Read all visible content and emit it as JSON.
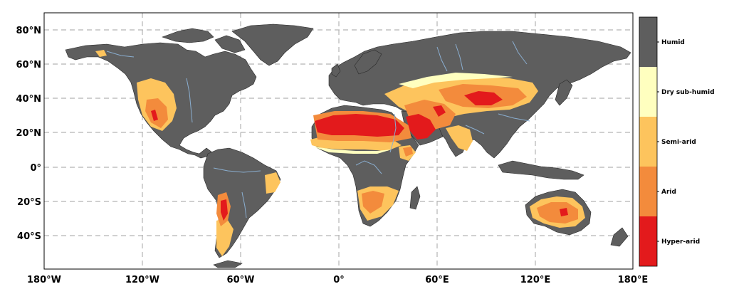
{
  "colors": {
    "humid": "#5e5e5e",
    "dry_subhumid": "#ffffbf",
    "semi_arid": "#fdc45d",
    "arid": "#f38b3c",
    "hyper_arid": "#e31a1c",
    "rivers": "#8aaed0",
    "ocean": "#ffffff"
  },
  "map": {
    "lat_labels": [
      "80°N",
      "60°N",
      "40°N",
      "20°N",
      "0°",
      "20°S",
      "40°S"
    ],
    "lon_labels": [
      "180°W",
      "120°W",
      "60°W",
      "0°",
      "60°E",
      "120°E",
      "180°E"
    ]
  },
  "legend": {
    "items": [
      {
        "label": "Humid",
        "color": "#5e5e5e"
      },
      {
        "label": "Dry sub-humid",
        "color": "#ffffbf"
      },
      {
        "label": "Semi-arid",
        "color": "#fdc45d"
      },
      {
        "label": "Arid",
        "color": "#f38b3c"
      },
      {
        "label": "Hyper-arid",
        "color": "#e31a1c"
      }
    ]
  }
}
